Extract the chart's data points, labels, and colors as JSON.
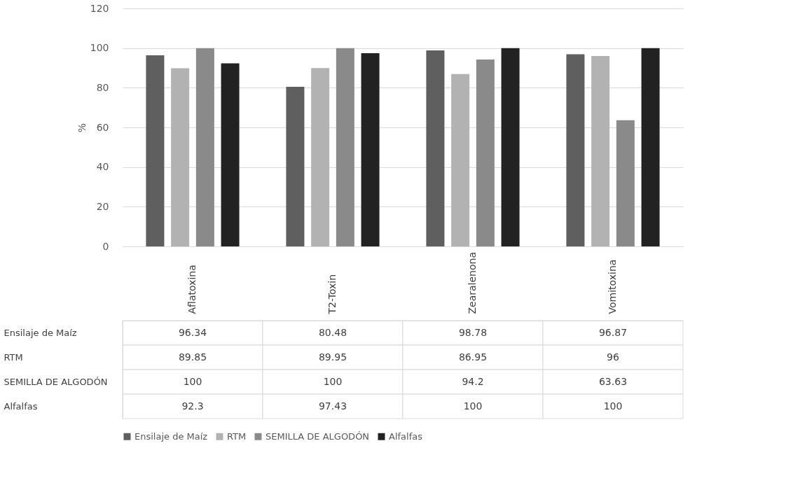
{
  "chart_data": {
    "type": "bar",
    "ylabel": "%",
    "categories": [
      "Aflatoxina",
      "T2-Toxin",
      "Zearalenona",
      "Vomitoxina"
    ],
    "series": [
      {
        "name": "Ensilaje de Maíz",
        "color": "#5f5f5f",
        "values": [
          96.34,
          80.48,
          98.78,
          96.87
        ]
      },
      {
        "name": "RTM",
        "color": "#b2b2b2",
        "values": [
          89.85,
          89.95,
          86.95,
          96
        ]
      },
      {
        "name": "SEMILLA DE ALGODÓN",
        "color": "#8a8a8a",
        "values": [
          100,
          100,
          94.2,
          63.63
        ]
      },
      {
        "name": "Alfalfas",
        "color": "#222222",
        "values": [
          92.3,
          97.43,
          100,
          100
        ]
      }
    ],
    "ylim": [
      0,
      120
    ],
    "yticks": [
      0,
      20,
      40,
      60,
      80,
      100,
      120
    ],
    "grid": "y",
    "legend": "bottom",
    "data_labels": true
  }
}
